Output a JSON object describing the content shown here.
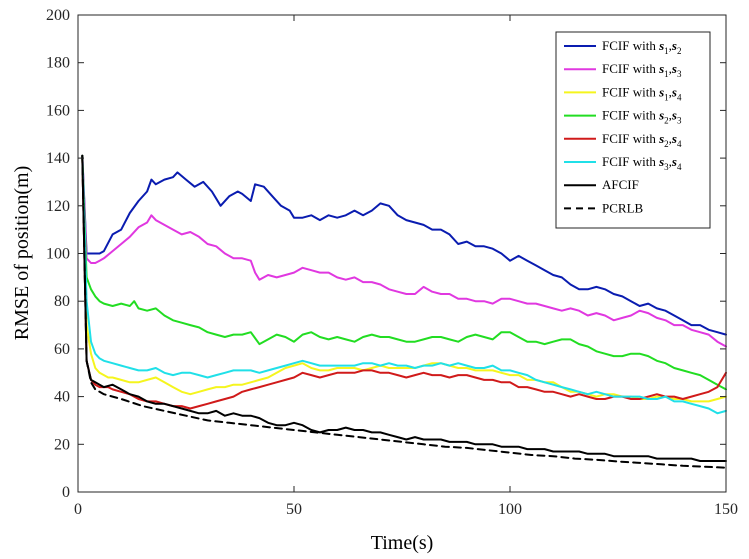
{
  "chart_data": {
    "type": "line",
    "title": "",
    "xlabel": "Time(s)",
    "ylabel": "RMSE of position(m)",
    "xlim": [
      0,
      150
    ],
    "ylim": [
      0,
      200
    ],
    "xticks": [
      0,
      50,
      100,
      150
    ],
    "yticks": [
      0,
      20,
      40,
      60,
      80,
      100,
      120,
      140,
      160,
      180,
      200
    ],
    "grid": false,
    "legend_position": "top-right",
    "series": [
      {
        "name": "FCIF with s1,s2",
        "legend": {
          "prefix": "FCIF with ",
          "a": "s",
          "a_sub": "1",
          "b": "s",
          "b_sub": "2"
        },
        "color": "#0a1cb0",
        "dash": "solid",
        "x": [
          1,
          2,
          3,
          4,
          5,
          6,
          8,
          10,
          12,
          14,
          16,
          17,
          18,
          20,
          22,
          23,
          25,
          27,
          29,
          31,
          33,
          35,
          37,
          38,
          40,
          41,
          43,
          45,
          47,
          49,
          50,
          52,
          54,
          56,
          58,
          60,
          62,
          64,
          66,
          68,
          70,
          72,
          74,
          76,
          78,
          80,
          82,
          84,
          86,
          88,
          90,
          92,
          94,
          96,
          98,
          100,
          102,
          104,
          106,
          108,
          110,
          112,
          114,
          116,
          118,
          120,
          122,
          124,
          126,
          128,
          130,
          132,
          134,
          136,
          138,
          140,
          142,
          144,
          146,
          148,
          150
        ],
        "y": [
          141,
          100,
          100,
          100,
          100,
          101,
          108,
          110,
          117,
          122,
          126,
          131,
          129,
          131,
          132,
          134,
          131,
          128,
          130,
          126,
          120,
          124,
          126,
          125,
          122,
          129,
          128,
          124,
          120,
          118,
          115,
          115,
          116,
          114,
          116,
          115,
          116,
          118,
          116,
          118,
          121,
          120,
          116,
          114,
          113,
          112,
          110,
          110,
          108,
          104,
          105,
          103,
          103,
          102,
          100,
          97,
          99,
          97,
          95,
          93,
          91,
          90,
          87,
          85,
          85,
          86,
          85,
          83,
          82,
          80,
          78,
          79,
          77,
          76,
          74,
          72,
          70,
          70,
          68,
          67,
          66
        ]
      },
      {
        "name": "FCIF with s1,s3",
        "legend": {
          "prefix": "FCIF with ",
          "a": "s",
          "a_sub": "1",
          "b": "s",
          "b_sub": "3"
        },
        "color": "#e038e0",
        "dash": "solid",
        "x": [
          1,
          2,
          3,
          4,
          5,
          6,
          8,
          10,
          12,
          14,
          16,
          17,
          18,
          20,
          22,
          24,
          26,
          28,
          30,
          32,
          34,
          36,
          38,
          40,
          41,
          42,
          44,
          46,
          48,
          50,
          52,
          54,
          56,
          58,
          60,
          62,
          64,
          66,
          68,
          70,
          72,
          74,
          76,
          78,
          80,
          82,
          84,
          86,
          88,
          90,
          92,
          94,
          96,
          98,
          100,
          102,
          104,
          106,
          108,
          110,
          112,
          114,
          116,
          118,
          120,
          122,
          124,
          126,
          128,
          130,
          132,
          134,
          136,
          138,
          140,
          142,
          144,
          146,
          148,
          150
        ],
        "y": [
          141,
          98,
          96,
          96,
          97,
          98,
          101,
          104,
          107,
          111,
          113,
          116,
          114,
          112,
          110,
          108,
          109,
          107,
          104,
          103,
          100,
          98,
          98,
          97,
          92,
          89,
          91,
          90,
          91,
          92,
          94,
          93,
          92,
          92,
          90,
          89,
          90,
          88,
          88,
          87,
          85,
          84,
          83,
          83,
          86,
          84,
          83,
          83,
          81,
          81,
          80,
          80,
          79,
          81,
          81,
          80,
          79,
          79,
          78,
          77,
          76,
          77,
          76,
          74,
          75,
          74,
          72,
          73,
          74,
          76,
          75,
          73,
          72,
          70,
          70,
          68,
          67,
          66,
          63,
          61
        ]
      },
      {
        "name": "FCIF with s1,s4",
        "legend": {
          "prefix": "FCIF with ",
          "a": "s",
          "a_sub": "1",
          "b": "s",
          "b_sub": "4"
        },
        "color": "#f5f51e",
        "dash": "solid",
        "x": [
          1,
          2,
          3,
          4,
          5,
          6,
          7,
          8,
          10,
          12,
          14,
          16,
          18,
          20,
          22,
          24,
          26,
          28,
          30,
          32,
          34,
          36,
          38,
          40,
          42,
          44,
          46,
          48,
          50,
          52,
          54,
          56,
          58,
          60,
          62,
          64,
          66,
          68,
          70,
          72,
          74,
          76,
          78,
          80,
          82,
          84,
          86,
          88,
          90,
          92,
          94,
          96,
          98,
          100,
          102,
          104,
          106,
          108,
          110,
          112,
          114,
          116,
          118,
          120,
          122,
          124,
          126,
          128,
          130,
          132,
          134,
          136,
          138,
          140,
          142,
          144,
          146,
          148,
          150
        ],
        "y": [
          141,
          70,
          58,
          52,
          50,
          49,
          48,
          48,
          47,
          46,
          46,
          47,
          48,
          46,
          44,
          42,
          41,
          42,
          43,
          44,
          44,
          45,
          45,
          46,
          47,
          48,
          50,
          52,
          53,
          54,
          52,
          51,
          51,
          52,
          52,
          52,
          51,
          52,
          53,
          52,
          52,
          52,
          52,
          53,
          54,
          54,
          53,
          52,
          52,
          51,
          51,
          51,
          50,
          49,
          49,
          47,
          47,
          46,
          46,
          44,
          42,
          42,
          41,
          40,
          41,
          41,
          40,
          40,
          39,
          39,
          40,
          40,
          39,
          39,
          38,
          38,
          38,
          39,
          40
        ]
      },
      {
        "name": "FCIF with s2,s3",
        "legend": {
          "prefix": "FCIF with ",
          "a": "s",
          "a_sub": "2",
          "b": "s",
          "b_sub": "3"
        },
        "color": "#22dd22",
        "dash": "solid",
        "x": [
          1,
          2,
          3,
          4,
          5,
          6,
          8,
          10,
          12,
          13,
          14,
          16,
          18,
          20,
          22,
          24,
          26,
          28,
          30,
          32,
          34,
          36,
          38,
          40,
          42,
          44,
          46,
          48,
          50,
          52,
          54,
          56,
          58,
          60,
          62,
          64,
          66,
          68,
          70,
          72,
          74,
          76,
          78,
          80,
          82,
          84,
          86,
          88,
          90,
          92,
          94,
          96,
          98,
          100,
          102,
          104,
          106,
          108,
          110,
          112,
          114,
          116,
          118,
          120,
          122,
          124,
          126,
          128,
          130,
          132,
          134,
          136,
          138,
          140,
          142,
          144,
          146,
          148,
          150
        ],
        "y": [
          141,
          90,
          85,
          82,
          80,
          79,
          78,
          79,
          78,
          80,
          77,
          76,
          77,
          74,
          72,
          71,
          70,
          69,
          67,
          66,
          65,
          66,
          66,
          67,
          62,
          64,
          66,
          65,
          63,
          66,
          67,
          65,
          64,
          65,
          64,
          63,
          65,
          66,
          65,
          65,
          64,
          63,
          63,
          64,
          65,
          65,
          64,
          63,
          65,
          66,
          65,
          64,
          67,
          67,
          65,
          63,
          63,
          62,
          63,
          64,
          64,
          62,
          61,
          59,
          58,
          57,
          57,
          58,
          58,
          57,
          55,
          54,
          52,
          51,
          50,
          49,
          47,
          45,
          43
        ]
      },
      {
        "name": "FCIF with s2,s4",
        "legend": {
          "prefix": "FCIF with ",
          "a": "s",
          "a_sub": "2",
          "b": "s",
          "b_sub": "4"
        },
        "color": "#d01a1a",
        "dash": "solid",
        "x": [
          1,
          2,
          3,
          4,
          5,
          6,
          7,
          8,
          10,
          12,
          14,
          16,
          18,
          20,
          22,
          24,
          26,
          28,
          30,
          32,
          34,
          36,
          38,
          40,
          42,
          44,
          46,
          48,
          50,
          52,
          54,
          56,
          58,
          60,
          62,
          64,
          66,
          68,
          70,
          72,
          74,
          76,
          78,
          80,
          82,
          84,
          86,
          88,
          90,
          92,
          94,
          96,
          98,
          100,
          102,
          104,
          106,
          108,
          110,
          112,
          114,
          116,
          118,
          120,
          122,
          124,
          126,
          128,
          130,
          132,
          134,
          136,
          138,
          140,
          142,
          144,
          146,
          148,
          150
        ],
        "y": [
          141,
          55,
          47,
          45,
          44,
          44,
          44,
          43,
          42,
          41,
          39,
          38,
          38,
          37,
          36,
          36,
          35,
          36,
          37,
          38,
          39,
          40,
          42,
          43,
          44,
          45,
          46,
          47,
          48,
          50,
          49,
          48,
          49,
          50,
          50,
          50,
          51,
          51,
          50,
          50,
          49,
          48,
          49,
          50,
          49,
          49,
          48,
          49,
          49,
          48,
          47,
          47,
          46,
          46,
          44,
          44,
          43,
          42,
          42,
          41,
          40,
          41,
          40,
          39,
          39,
          40,
          40,
          39,
          39,
          40,
          41,
          40,
          40,
          39,
          40,
          41,
          42,
          44,
          50
        ]
      },
      {
        "name": "FCIF with s3,s4",
        "legend": {
          "prefix": "FCIF with ",
          "a": "s",
          "a_sub": "3",
          "b": "s",
          "b_sub": "4"
        },
        "color": "#20e0e8",
        "dash": "solid",
        "x": [
          1,
          2,
          3,
          4,
          5,
          6,
          8,
          10,
          12,
          14,
          16,
          18,
          20,
          22,
          24,
          26,
          28,
          30,
          32,
          34,
          36,
          38,
          40,
          42,
          44,
          46,
          48,
          50,
          52,
          54,
          56,
          58,
          60,
          62,
          64,
          66,
          68,
          70,
          72,
          74,
          76,
          78,
          80,
          82,
          84,
          86,
          88,
          90,
          92,
          94,
          96,
          98,
          100,
          102,
          104,
          106,
          108,
          110,
          112,
          114,
          116,
          118,
          120,
          122,
          124,
          126,
          128,
          130,
          132,
          134,
          136,
          138,
          140,
          142,
          144,
          146,
          148,
          150
        ],
        "y": [
          141,
          80,
          63,
          58,
          56,
          55,
          54,
          53,
          52,
          51,
          51,
          52,
          50,
          49,
          50,
          50,
          49,
          48,
          49,
          50,
          51,
          51,
          51,
          50,
          51,
          52,
          53,
          54,
          55,
          54,
          53,
          53,
          53,
          53,
          53,
          54,
          54,
          53,
          54,
          53,
          53,
          52,
          53,
          53,
          54,
          53,
          54,
          53,
          52,
          52,
          53,
          51,
          51,
          50,
          49,
          47,
          46,
          45,
          44,
          43,
          42,
          41,
          42,
          41,
          40,
          40,
          40,
          40,
          39,
          39,
          40,
          38,
          38,
          37,
          36,
          35,
          33,
          34
        ]
      },
      {
        "name": "AFCIF",
        "legend": {
          "prefix": "AFCIF"
        },
        "color": "#000000",
        "dash": "solid",
        "x": [
          1,
          2,
          3,
          4,
          5,
          6,
          8,
          10,
          12,
          14,
          16,
          18,
          20,
          22,
          24,
          26,
          28,
          30,
          32,
          34,
          36,
          38,
          40,
          42,
          44,
          46,
          48,
          50,
          52,
          54,
          56,
          58,
          60,
          62,
          64,
          66,
          68,
          70,
          72,
          74,
          76,
          78,
          80,
          82,
          84,
          86,
          88,
          90,
          92,
          94,
          96,
          98,
          100,
          102,
          104,
          106,
          108,
          110,
          112,
          114,
          116,
          118,
          120,
          122,
          124,
          126,
          128,
          130,
          132,
          134,
          136,
          138,
          140,
          142,
          144,
          146,
          148,
          150
        ],
        "y": [
          141,
          55,
          47,
          46,
          45,
          44,
          45,
          43,
          41,
          40,
          38,
          37,
          37,
          36,
          35,
          34,
          33,
          33,
          34,
          32,
          33,
          32,
          32,
          31,
          29,
          28,
          28,
          29,
          28,
          26,
          25,
          26,
          26,
          27,
          26,
          26,
          25,
          25,
          24,
          23,
          22,
          23,
          22,
          22,
          22,
          21,
          21,
          21,
          20,
          20,
          20,
          19,
          19,
          19,
          18,
          18,
          18,
          17,
          17,
          17,
          17,
          16,
          16,
          16,
          15,
          15,
          15,
          15,
          15,
          14,
          14,
          14,
          14,
          14,
          13,
          13,
          13,
          13
        ]
      },
      {
        "name": "PCRLB",
        "legend": {
          "prefix": "PCRLB"
        },
        "color": "#000000",
        "dash": "dashed",
        "x": [
          1,
          2,
          3,
          4,
          5,
          6,
          8,
          10,
          15,
          20,
          25,
          30,
          35,
          40,
          45,
          50,
          55,
          60,
          65,
          70,
          75,
          80,
          85,
          90,
          95,
          100,
          105,
          110,
          115,
          120,
          125,
          130,
          135,
          140,
          145,
          150
        ],
        "y": [
          141,
          55,
          46,
          43,
          42,
          41,
          40,
          39,
          36,
          34,
          32,
          30,
          29,
          28,
          27,
          26,
          25,
          24,
          23,
          22,
          21,
          20,
          19,
          18.5,
          17.5,
          16.5,
          15.5,
          15,
          14,
          13.5,
          12.8,
          12.2,
          11.6,
          11,
          10.6,
          10.2
        ]
      }
    ]
  }
}
